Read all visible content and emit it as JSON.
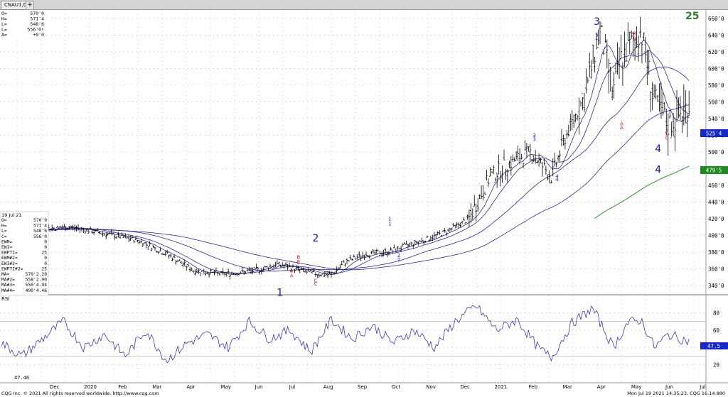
{
  "window": {
    "tab_label": "CNAU1,D",
    "add_tab": "+"
  },
  "quote_box_top": [
    {
      "label": "O=",
      "value": "570'0"
    },
    {
      "label": "H=",
      "value": "571'4"
    },
    {
      "label": "L=",
      "value": "548'6"
    },
    {
      "label": "L=",
      "value": "556'0↑"
    },
    {
      "label": "Δ=",
      "value": "+0'0"
    }
  ],
  "study_box": {
    "date": "19 Jul 21",
    "rows": [
      {
        "label": "O=",
        "value": "570'0"
      },
      {
        "label": "H=",
        "value": "571'4"
      },
      {
        "label": "L=",
        "value": "548'6"
      },
      {
        "label": "C=",
        "value": "556'0"
      },
      {
        "label": "EWM=",
        "value": "0"
      },
      {
        "label": "EWI=",
        "value": "0"
      },
      {
        "label": "EWPTI=",
        "value": "25"
      },
      {
        "label": "EWM#2=",
        "value": "0"
      },
      {
        "label": "EWI#2=",
        "value": "0"
      },
      {
        "label": "EWPTI#2=",
        "value": "25"
      },
      {
        "label": "MA=",
        "value": "579'2.20"
      },
      {
        "label": "MA#2=",
        "value": "558'2.90"
      },
      {
        "label": "MA#3=",
        "value": "550'4.94"
      },
      {
        "label": "MA#4=",
        "value": "490'4.46"
      }
    ]
  },
  "rsi_panel": {
    "label": "RSI",
    "value_label": "47.46",
    "badge": "47.5"
  },
  "price_badges": {
    "ma_blue": "525'4",
    "ma_green": "479'5"
  },
  "count_label": "25",
  "wave_labels": [
    {
      "text": "1",
      "color": "#1a1a9a",
      "big": true
    },
    {
      "text": "2",
      "color": "#1a1a9a",
      "big": true
    },
    {
      "text": "3",
      "color": "#1a1a9a",
      "big": true
    },
    {
      "text": "4",
      "color": "#1a1a9a",
      "big": true
    },
    {
      "text": "4",
      "color": "#1a1a9a",
      "big": true
    },
    {
      "text": "5",
      "color": "#1a1a9a",
      "big": false
    },
    {
      "text": "1",
      "color": "#1a1a9a",
      "big": false
    },
    {
      "text": "1",
      "color": "#1a1a9a",
      "big": false
    },
    {
      "text": "2",
      "color": "#1a1a9a",
      "big": false
    },
    {
      "text": "2",
      "color": "#1a1a9a",
      "big": false
    },
    {
      "text": "3",
      "color": "#1a1a9a",
      "big": false
    },
    {
      "text": "3",
      "color": "#1a1a9a",
      "big": false
    },
    {
      "text": "4",
      "color": "#1a1a9a",
      "big": false
    },
    {
      "text": "4",
      "color": "#1a1a9a",
      "big": false
    },
    {
      "text": "A",
      "color": "#cc2222",
      "big": false
    },
    {
      "text": "A",
      "color": "#cc2222",
      "big": false
    },
    {
      "text": "B",
      "color": "#cc2222",
      "big": false
    },
    {
      "text": "B",
      "color": "#cc2222",
      "big": false
    },
    {
      "text": "C",
      "color": "#cc2222",
      "big": false
    },
    {
      "text": "C",
      "color": "#cc2222",
      "big": false
    },
    {
      "text": "A",
      "color": "#cc2222",
      "big": false
    },
    {
      "text": "A",
      "color": "#cc2222",
      "big": false
    },
    {
      "text": "B",
      "color": "#cc2222",
      "big": false
    },
    {
      "text": "B",
      "color": "#cc2222",
      "big": false
    },
    {
      "text": "C",
      "color": "#cc2222",
      "big": false
    },
    {
      "text": "C",
      "color": "#cc2222",
      "big": false
    }
  ],
  "footer": {
    "left": "CQG Inc. © 2021 All rights reserved worldwide. http://www.cqg.com",
    "right": "Mon Jul 19 2021 14:35:23, CQG 16.14.880"
  },
  "colors": {
    "background": "#ffffff",
    "grid": "#9a9a9a",
    "bars": "#000000",
    "ma_line": "#2a2a8c",
    "ma_green": "#2f8f2f",
    "rsi_line": "#3a3ab0",
    "badge_blue": "#1428c8",
    "badge_green": "#1f8a1f",
    "count_green": "#2e7d32"
  },
  "chart_data": [
    {
      "type": "bar",
      "title": "CNAU1,D",
      "series_kind": "ohlc_daily",
      "ylim": [
        330,
        670
      ],
      "y_ticks": [
        "660'0",
        "640'0",
        "620'0",
        "600'0",
        "580'0",
        "560'0",
        "540'0",
        "520'0",
        "500'0",
        "480'0",
        "460'0",
        "440'0",
        "420'0",
        "400'0",
        "380'0",
        "360'0",
        "340'0"
      ],
      "x_month_labels": [
        "Dec",
        "2020",
        "Feb",
        "Mar",
        "Apr",
        "May",
        "Jun",
        "Jul",
        "Aug",
        "Sep",
        "Oct",
        "Nov",
        "Dec",
        "2021",
        "Feb",
        "Mar",
        "Apr",
        "May",
        "Jun",
        "Jul"
      ],
      "x_day_labels": [
        "21",
        "01",
        "11",
        "18",
        "02",
        "09",
        "16",
        "23",
        "02",
        "13",
        "27",
        "03",
        "10",
        "24",
        "02",
        "09",
        "16",
        "23",
        "01",
        "13",
        "20",
        "01",
        "11",
        "18",
        "01",
        "08",
        "15",
        "22",
        "01",
        "13",
        "20",
        "27",
        "03",
        "10",
        "17",
        "24",
        "01",
        "14",
        "21",
        "01",
        "12",
        "19",
        "26",
        "02",
        "09",
        "16",
        "23",
        "01",
        "14",
        "21",
        "04",
        "11",
        "25",
        "01",
        "08",
        "22",
        "01",
        "08",
        "15",
        "22",
        "01",
        "12",
        "19",
        "26",
        "03",
        "10",
        "17",
        "24",
        "01",
        "14",
        "21",
        "01",
        "12",
        "19"
      ],
      "close_anchors": [
        {
          "t": 0.0,
          "v": 405
        },
        {
          "t": 0.05,
          "v": 408
        },
        {
          "t": 0.1,
          "v": 410
        },
        {
          "t": 0.14,
          "v": 404
        },
        {
          "t": 0.2,
          "v": 394
        },
        {
          "t": 0.24,
          "v": 378
        },
        {
          "t": 0.28,
          "v": 358
        },
        {
          "t": 0.32,
          "v": 354
        },
        {
          "t": 0.35,
          "v": 356
        },
        {
          "t": 0.38,
          "v": 360
        },
        {
          "t": 0.4,
          "v": 366
        },
        {
          "t": 0.42,
          "v": 362
        },
        {
          "t": 0.45,
          "v": 355
        },
        {
          "t": 0.48,
          "v": 353
        },
        {
          "t": 0.5,
          "v": 368
        },
        {
          "t": 0.53,
          "v": 378
        },
        {
          "t": 0.56,
          "v": 380
        },
        {
          "t": 0.59,
          "v": 388
        },
        {
          "t": 0.62,
          "v": 396
        },
        {
          "t": 0.65,
          "v": 406
        },
        {
          "t": 0.68,
          "v": 420
        },
        {
          "t": 0.71,
          "v": 470
        },
        {
          "t": 0.74,
          "v": 487
        },
        {
          "t": 0.77,
          "v": 500
        },
        {
          "t": 0.8,
          "v": 470
        },
        {
          "t": 0.82,
          "v": 518
        },
        {
          "t": 0.85,
          "v": 570
        },
        {
          "t": 0.87,
          "v": 648
        },
        {
          "t": 0.89,
          "v": 570
        },
        {
          "t": 0.9,
          "v": 610
        },
        {
          "t": 0.93,
          "v": 645
        },
        {
          "t": 0.95,
          "v": 560
        },
        {
          "t": 0.97,
          "v": 532
        },
        {
          "t": 1.0,
          "v": 556
        }
      ],
      "moving_averages": [
        {
          "name": "MA",
          "value": "579'2.20"
        },
        {
          "name": "MA#2",
          "value": "558'2.90"
        },
        {
          "name": "MA#3",
          "value": "550'4.94"
        },
        {
          "name": "MA#4",
          "value": "490'4.46"
        }
      ]
    },
    {
      "type": "line",
      "title": "RSI",
      "ylim": [
        0,
        100
      ],
      "y_ticks": [
        "80",
        "60",
        "40",
        "20"
      ],
      "last_value": 47.46,
      "rsi_anchors": [
        {
          "t": 0.0,
          "v": 45
        },
        {
          "t": 0.03,
          "v": 30
        },
        {
          "t": 0.06,
          "v": 50
        },
        {
          "t": 0.09,
          "v": 70
        },
        {
          "t": 0.12,
          "v": 40
        },
        {
          "t": 0.15,
          "v": 55
        },
        {
          "t": 0.18,
          "v": 30
        },
        {
          "t": 0.21,
          "v": 60
        },
        {
          "t": 0.24,
          "v": 25
        },
        {
          "t": 0.27,
          "v": 45
        },
        {
          "t": 0.3,
          "v": 55
        },
        {
          "t": 0.33,
          "v": 40
        },
        {
          "t": 0.36,
          "v": 70
        },
        {
          "t": 0.39,
          "v": 50
        },
        {
          "t": 0.42,
          "v": 60
        },
        {
          "t": 0.45,
          "v": 35
        },
        {
          "t": 0.48,
          "v": 72
        },
        {
          "t": 0.51,
          "v": 50
        },
        {
          "t": 0.54,
          "v": 65
        },
        {
          "t": 0.57,
          "v": 45
        },
        {
          "t": 0.6,
          "v": 60
        },
        {
          "t": 0.63,
          "v": 40
        },
        {
          "t": 0.66,
          "v": 70
        },
        {
          "t": 0.69,
          "v": 88
        },
        {
          "t": 0.72,
          "v": 60
        },
        {
          "t": 0.75,
          "v": 72
        },
        {
          "t": 0.78,
          "v": 40
        },
        {
          "t": 0.8,
          "v": 28
        },
        {
          "t": 0.83,
          "v": 68
        },
        {
          "t": 0.86,
          "v": 85
        },
        {
          "t": 0.89,
          "v": 40
        },
        {
          "t": 0.91,
          "v": 68
        },
        {
          "t": 0.93,
          "v": 72
        },
        {
          "t": 0.95,
          "v": 40
        },
        {
          "t": 0.97,
          "v": 55
        },
        {
          "t": 1.0,
          "v": 47
        }
      ]
    }
  ]
}
